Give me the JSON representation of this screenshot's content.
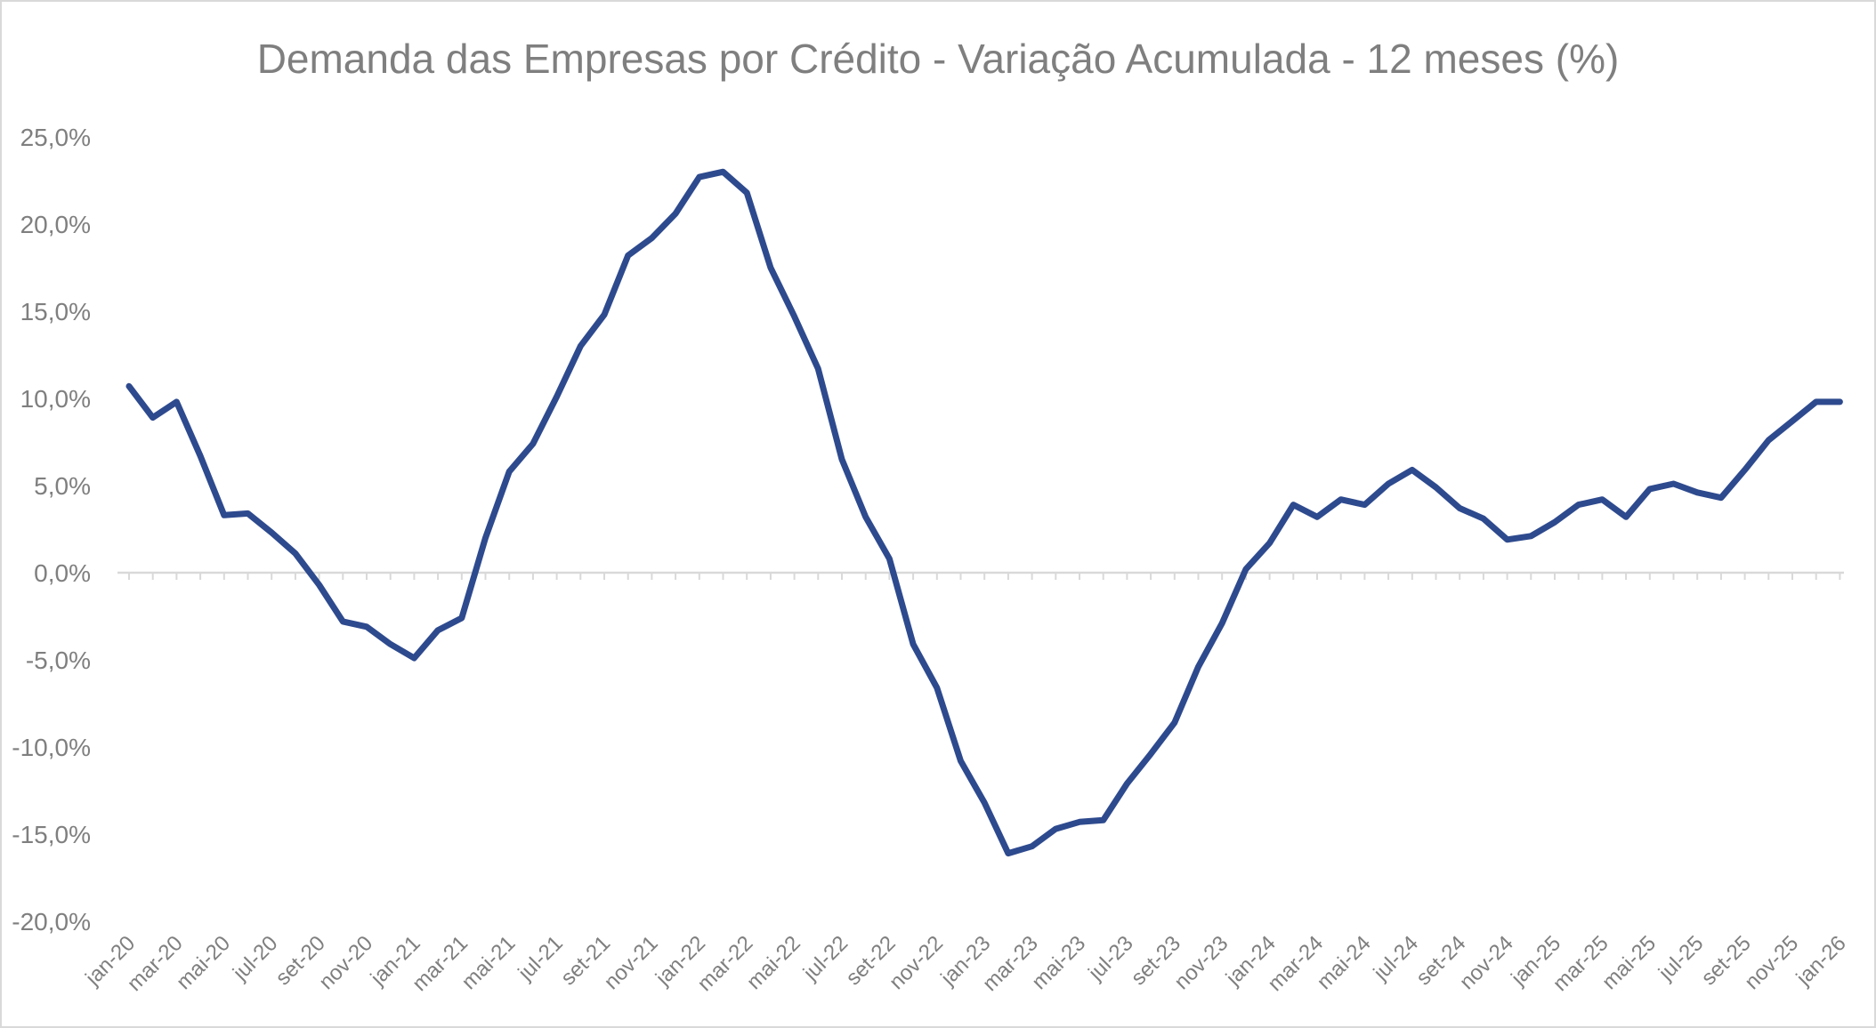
{
  "chart_data": {
    "type": "line",
    "title": "Demanda das Empresas por Crédito - Variação Acumulada - 12 meses (%)",
    "xlabel": "",
    "ylabel": "",
    "ylim": [
      -20,
      25
    ],
    "yticks": [
      25,
      20,
      15,
      10,
      5,
      0,
      -5,
      -10,
      -15,
      -20
    ],
    "ytick_labels": [
      "25,0%",
      "20,0%",
      "15,0%",
      "10,0%",
      "5,0%",
      "0,0%",
      "-5,0%",
      "-10,0%",
      "-15,0%",
      "-20,0%"
    ],
    "x_tick_labels": [
      "jan-20",
      "mar-20",
      "mai-20",
      "jul-20",
      "set-20",
      "nov-20",
      "jan-21",
      "mar-21",
      "mai-21",
      "jul-21",
      "set-21",
      "nov-21",
      "jan-22",
      "mar-22",
      "mai-22",
      "jul-22",
      "set-22",
      "nov-22",
      "jan-23",
      "mar-23",
      "mai-23",
      "jul-23",
      "set-23",
      "nov-23",
      "jan-24",
      "mar-24",
      "mai-24",
      "jul-24",
      "set-24",
      "nov-24",
      "jan-25",
      "mar-25",
      "mai-25",
      "jul-25",
      "set-25",
      "nov-25",
      "jan-26"
    ],
    "grid": false,
    "legend": "none",
    "line_color": "#2e4a8e",
    "axis_color": "#d9d9d9",
    "series": [
      {
        "values": [
          10.7,
          8.9,
          9.8,
          6.7,
          3.3,
          3.4,
          2.3,
          1.1,
          -0.7,
          -2.8,
          -3.1,
          -4.1,
          -4.9,
          -3.3,
          -2.6,
          2.0,
          5.8,
          7.4,
          10.1,
          13.0,
          14.8,
          18.2,
          19.2,
          20.6,
          22.7,
          23.0,
          21.8,
          17.5,
          14.7,
          11.7,
          6.5,
          3.2,
          0.8,
          -4.1,
          -6.6,
          -10.8,
          -13.2,
          -16.1,
          -15.7,
          -14.7,
          -14.3,
          -14.2,
          -12.1,
          -10.4,
          -8.6,
          -5.4,
          -2.9,
          0.2,
          1.7,
          3.9,
          3.2,
          4.2,
          3.9,
          5.1,
          5.9,
          4.9,
          3.7,
          3.1,
          1.9,
          2.1,
          2.9,
          3.9,
          4.2,
          3.2,
          4.8,
          5.1,
          4.6,
          4.3,
          5.9,
          7.6,
          8.7,
          9.8,
          9.8
        ]
      }
    ]
  }
}
